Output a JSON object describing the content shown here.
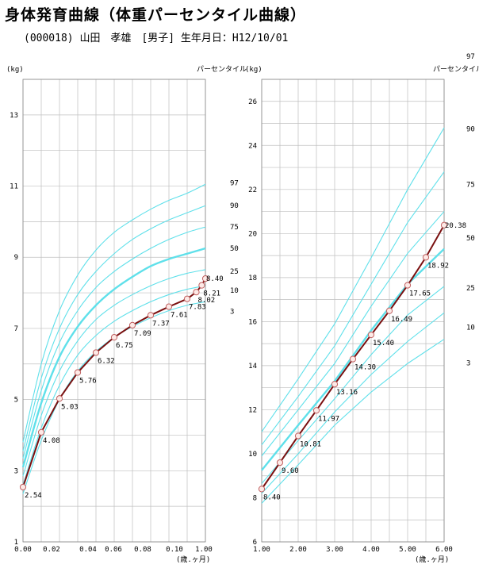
{
  "header": {
    "title": "身体発育曲線（体重パーセンタイル曲線）",
    "subtitle": "(000018) 山田　孝雄　[男子] 生年月日：H12/10/01"
  },
  "chart_data": [
    {
      "type": "line",
      "ylabel": "(kg)",
      "xlabel": "(歳.ヶ月)",
      "percentile_label": "パーセンタイル",
      "xlim": [
        0,
        1
      ],
      "ylim": [
        1,
        14
      ],
      "x_ticks": [
        "0.00",
        "0.02",
        "0.04",
        "0.06",
        "0.08",
        "0.10",
        "1.00"
      ],
      "y_ticks": [
        1,
        3,
        5,
        7,
        9,
        11,
        13
      ],
      "grid": true,
      "percentiles": [
        {
          "name": "97",
          "values": [
            3.8,
            6.0,
            7.5,
            8.5,
            9.2,
            9.7,
            10.05,
            10.35,
            10.6,
            10.8,
            11.05
          ],
          "emphasis": false
        },
        {
          "name": "90",
          "values": [
            3.55,
            5.6,
            7.0,
            7.95,
            8.6,
            9.1,
            9.5,
            9.8,
            10.05,
            10.25,
            10.45
          ],
          "emphasis": false
        },
        {
          "name": "75",
          "values": [
            3.35,
            5.25,
            6.6,
            7.5,
            8.15,
            8.6,
            8.95,
            9.25,
            9.5,
            9.7,
            9.85
          ],
          "emphasis": false
        },
        {
          "name": "50",
          "values": [
            3.1,
            4.9,
            6.2,
            7.05,
            7.65,
            8.1,
            8.45,
            8.75,
            8.95,
            9.1,
            9.25
          ],
          "emphasis": true
        },
        {
          "name": "25",
          "values": [
            2.85,
            4.55,
            5.8,
            6.65,
            7.25,
            7.65,
            7.95,
            8.2,
            8.4,
            8.55,
            8.65
          ],
          "emphasis": false
        },
        {
          "name": "10",
          "values": [
            2.6,
            4.2,
            5.4,
            6.25,
            6.8,
            7.2,
            7.5,
            7.75,
            7.95,
            8.1,
            8.2
          ],
          "emphasis": false
        },
        {
          "name": "3",
          "values": [
            2.35,
            3.85,
            5.0,
            5.8,
            6.35,
            6.75,
            7.05,
            7.3,
            7.5,
            7.65,
            7.75
          ],
          "emphasis": false
        }
      ],
      "measurements": [
        {
          "x": 0.0,
          "y": 2.54
        },
        {
          "x": 0.1,
          "y": 4.08
        },
        {
          "x": 0.2,
          "y": 5.03
        },
        {
          "x": 0.3,
          "y": 5.76
        },
        {
          "x": 0.4,
          "y": 6.32
        },
        {
          "x": 0.5,
          "y": 6.75
        },
        {
          "x": 0.6,
          "y": 7.09
        },
        {
          "x": 0.7,
          "y": 7.37
        },
        {
          "x": 0.8,
          "y": 7.61
        },
        {
          "x": 0.9,
          "y": 7.83
        },
        {
          "x": 0.95,
          "y": 8.02
        },
        {
          "x": 0.98,
          "y": 8.21
        },
        {
          "x": 1.0,
          "y": 8.4
        }
      ]
    },
    {
      "type": "line",
      "ylabel": "(kg)",
      "xlabel": "(歳.ヶ月)",
      "percentile_label": "パーセンタイル",
      "xlim": [
        1,
        6
      ],
      "ylim": [
        6,
        27
      ],
      "x_ticks": [
        "1.00",
        "2.00",
        "3.00",
        "4.00",
        "5.00",
        "6.00"
      ],
      "y_ticks": [
        6,
        8,
        10,
        12,
        14,
        16,
        18,
        20,
        22,
        24,
        26
      ],
      "grid": true,
      "percentiles": [
        {
          "name": "97",
          "x": [
            1,
            2,
            3,
            4,
            5,
            6
          ],
          "values": [
            11.0,
            13.4,
            15.9,
            18.9,
            22.0,
            24.8
          ],
          "emphasis": false
        },
        {
          "name": "90",
          "x": [
            1,
            2,
            3,
            4,
            5,
            6
          ],
          "values": [
            10.4,
            12.6,
            14.9,
            17.7,
            20.5,
            22.8
          ],
          "emphasis": false
        },
        {
          "name": "75",
          "x": [
            1,
            2,
            3,
            4,
            5,
            6
          ],
          "values": [
            9.9,
            12.0,
            14.1,
            16.7,
            19.1,
            21.0
          ],
          "emphasis": false
        },
        {
          "name": "50",
          "x": [
            1,
            2,
            3,
            4,
            5,
            6
          ],
          "values": [
            9.25,
            11.3,
            13.3,
            15.6,
            17.7,
            19.3
          ],
          "emphasis": true
        },
        {
          "name": "25",
          "x": [
            1,
            2,
            3,
            4,
            5,
            6
          ],
          "values": [
            8.65,
            10.6,
            12.5,
            14.5,
            16.3,
            17.6
          ],
          "emphasis": false
        },
        {
          "name": "10",
          "x": [
            1,
            2,
            3,
            4,
            5,
            6
          ],
          "values": [
            8.2,
            10.0,
            11.9,
            13.6,
            15.1,
            16.4
          ],
          "emphasis": false
        },
        {
          "name": "3",
          "x": [
            1,
            2,
            3,
            4,
            5,
            6
          ],
          "values": [
            7.75,
            9.5,
            11.3,
            12.8,
            14.1,
            15.2
          ],
          "emphasis": false
        }
      ],
      "measurements": [
        {
          "x": 1.0,
          "y": 8.4
        },
        {
          "x": 1.5,
          "y": 9.6
        },
        {
          "x": 2.0,
          "y": 10.81
        },
        {
          "x": 2.5,
          "y": 11.97
        },
        {
          "x": 3.0,
          "y": 13.16
        },
        {
          "x": 3.5,
          "y": 14.3
        },
        {
          "x": 4.0,
          "y": 15.4
        },
        {
          "x": 4.5,
          "y": 16.49
        },
        {
          "x": 5.0,
          "y": 17.65
        },
        {
          "x": 5.5,
          "y": 18.92
        },
        {
          "x": 6.0,
          "y": 20.38
        }
      ]
    }
  ],
  "colors": {
    "percentile": "#5fe0ea",
    "measurement": "#7a1010",
    "marker_fill": "#fde9e6",
    "marker_stroke": "#c06060",
    "grid": "#bfbfbf"
  }
}
